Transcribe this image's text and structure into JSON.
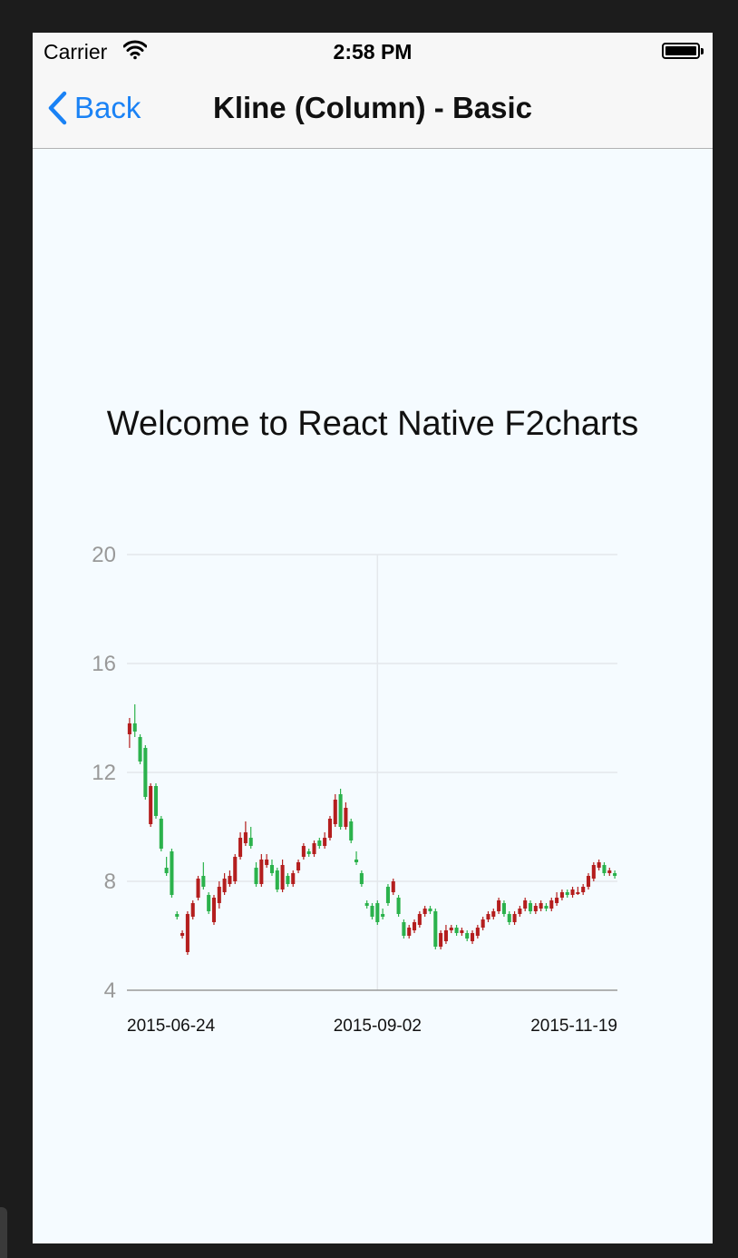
{
  "status_bar": {
    "carrier": "Carrier",
    "time": "2:58 PM",
    "wifi_icon": "wifi-icon",
    "battery_icon": "battery-icon"
  },
  "nav": {
    "back_label": "Back",
    "back_icon": "chevron-left-icon",
    "title": "Kline (Column) - Basic"
  },
  "content": {
    "welcome": "Welcome to React Native F2charts"
  },
  "colors": {
    "up": "#b41e1e",
    "down": "#2bb24c",
    "accent": "#1a82f5",
    "grid": "#e4e8ec",
    "axis_text": "#999999"
  },
  "chart_data": {
    "type": "candlestick",
    "title": "",
    "xlabel": "",
    "ylabel": "",
    "ylim": [
      4,
      20
    ],
    "yticks": [
      4,
      8,
      12,
      16,
      20
    ],
    "xticks": [
      {
        "label": "2015-06-24",
        "index": 0
      },
      {
        "label": "2015-09-02",
        "index": 47
      },
      {
        "label": "2015-11-19",
        "index": 92
      }
    ],
    "x_count": 93,
    "grid": true,
    "legend": "none",
    "ohlc": [
      [
        13.4,
        13.8,
        14.0,
        12.9
      ],
      [
        13.8,
        13.5,
        14.5,
        13.3
      ],
      [
        13.3,
        12.4,
        13.4,
        12.3
      ],
      [
        12.9,
        11.1,
        13.0,
        11.0
      ],
      [
        10.1,
        11.5,
        11.6,
        10.0
      ],
      [
        11.5,
        10.4,
        11.6,
        10.3
      ],
      [
        10.3,
        9.2,
        10.4,
        9.1
      ],
      [
        8.5,
        8.3,
        8.9,
        8.2
      ],
      [
        9.1,
        7.5,
        9.2,
        7.4
      ],
      [
        6.8,
        6.7,
        6.9,
        6.6
      ],
      [
        6.0,
        6.1,
        6.2,
        5.9
      ],
      [
        5.4,
        6.8,
        6.9,
        5.3
      ],
      [
        6.7,
        7.2,
        7.3,
        6.6
      ],
      [
        7.4,
        8.1,
        8.2,
        7.3
      ],
      [
        8.2,
        7.8,
        8.7,
        7.7
      ],
      [
        7.5,
        6.9,
        7.6,
        6.8
      ],
      [
        6.5,
        7.4,
        7.5,
        6.4
      ],
      [
        7.2,
        7.8,
        8.0,
        7.0
      ],
      [
        7.6,
        8.1,
        8.3,
        7.5
      ],
      [
        7.9,
        8.2,
        8.4,
        7.8
      ],
      [
        8.0,
        8.9,
        9.0,
        7.9
      ],
      [
        8.9,
        9.6,
        9.8,
        8.8
      ],
      [
        9.4,
        9.8,
        10.2,
        9.3
      ],
      [
        9.6,
        9.3,
        10.0,
        9.2
      ],
      [
        8.5,
        7.9,
        8.7,
        7.8
      ],
      [
        7.9,
        8.8,
        9.0,
        7.8
      ],
      [
        8.6,
        8.8,
        9.0,
        8.5
      ],
      [
        8.6,
        8.3,
        8.8,
        8.2
      ],
      [
        8.4,
        7.7,
        8.5,
        7.6
      ],
      [
        7.7,
        8.6,
        8.8,
        7.6
      ],
      [
        8.2,
        7.9,
        8.3,
        7.8
      ],
      [
        7.9,
        8.3,
        8.4,
        7.8
      ],
      [
        8.4,
        8.7,
        8.8,
        8.3
      ],
      [
        8.9,
        9.3,
        9.4,
        8.8
      ],
      [
        9.1,
        9.0,
        9.2,
        8.9
      ],
      [
        9.0,
        9.4,
        9.5,
        8.9
      ],
      [
        9.5,
        9.3,
        9.6,
        9.2
      ],
      [
        9.3,
        9.6,
        9.8,
        9.2
      ],
      [
        9.6,
        10.3,
        10.4,
        9.5
      ],
      [
        10.1,
        11.0,
        11.2,
        10.0
      ],
      [
        11.2,
        10.0,
        11.4,
        9.9
      ],
      [
        10.0,
        10.7,
        10.9,
        9.9
      ],
      [
        10.2,
        9.5,
        10.3,
        9.4
      ],
      [
        8.8,
        8.7,
        9.1,
        8.6
      ],
      [
        8.3,
        7.9,
        8.4,
        7.8
      ],
      [
        7.2,
        7.1,
        7.3,
        7.0
      ],
      [
        7.1,
        6.7,
        7.2,
        6.6
      ],
      [
        7.2,
        6.5,
        7.3,
        6.4
      ],
      [
        6.8,
        6.7,
        7.0,
        6.6
      ],
      [
        7.8,
        7.2,
        7.9,
        7.1
      ],
      [
        7.6,
        8.0,
        8.1,
        7.5
      ],
      [
        7.4,
        6.8,
        7.5,
        6.7
      ],
      [
        6.5,
        6.0,
        6.6,
        5.9
      ],
      [
        6.0,
        6.3,
        6.4,
        5.9
      ],
      [
        6.2,
        6.5,
        6.6,
        6.1
      ],
      [
        6.4,
        6.8,
        6.9,
        6.3
      ],
      [
        6.8,
        7.0,
        7.1,
        6.7
      ],
      [
        7.0,
        6.9,
        7.1,
        6.8
      ],
      [
        6.9,
        5.6,
        7.0,
        5.5
      ],
      [
        5.6,
        6.1,
        6.2,
        5.5
      ],
      [
        5.8,
        6.2,
        6.4,
        5.7
      ],
      [
        6.2,
        6.3,
        6.4,
        6.1
      ],
      [
        6.3,
        6.1,
        6.4,
        6.0
      ],
      [
        6.1,
        6.2,
        6.3,
        6.0
      ],
      [
        6.1,
        5.9,
        6.2,
        5.8
      ],
      [
        5.8,
        6.1,
        6.2,
        5.7
      ],
      [
        6.0,
        6.3,
        6.4,
        5.9
      ],
      [
        6.3,
        6.6,
        6.7,
        6.2
      ],
      [
        6.6,
        6.8,
        6.9,
        6.5
      ],
      [
        6.7,
        6.9,
        7.0,
        6.6
      ],
      [
        6.9,
        7.3,
        7.4,
        6.8
      ],
      [
        7.2,
        6.8,
        7.3,
        6.7
      ],
      [
        6.8,
        6.5,
        6.9,
        6.4
      ],
      [
        6.5,
        6.8,
        6.9,
        6.4
      ],
      [
        6.8,
        7.0,
        7.1,
        6.7
      ],
      [
        7.0,
        7.3,
        7.4,
        6.9
      ],
      [
        7.2,
        6.9,
        7.3,
        6.8
      ],
      [
        6.9,
        7.1,
        7.2,
        6.8
      ],
      [
        7.0,
        7.2,
        7.3,
        6.9
      ],
      [
        7.1,
        7.0,
        7.2,
        6.9
      ],
      [
        7.0,
        7.3,
        7.4,
        6.9
      ],
      [
        7.2,
        7.4,
        7.6,
        7.1
      ],
      [
        7.4,
        7.6,
        7.7,
        7.3
      ],
      [
        7.6,
        7.5,
        7.7,
        7.4
      ],
      [
        7.5,
        7.7,
        7.8,
        7.4
      ],
      [
        7.6,
        7.6,
        7.8,
        7.5
      ],
      [
        7.6,
        7.8,
        7.9,
        7.5
      ],
      [
        7.8,
        8.2,
        8.3,
        7.7
      ],
      [
        8.1,
        8.6,
        8.7,
        8.0
      ],
      [
        8.5,
        8.7,
        8.8,
        8.4
      ],
      [
        8.6,
        8.3,
        8.7,
        8.2
      ],
      [
        8.3,
        8.4,
        8.5,
        8.2
      ],
      [
        8.3,
        8.2,
        8.4,
        8.1
      ]
    ]
  }
}
